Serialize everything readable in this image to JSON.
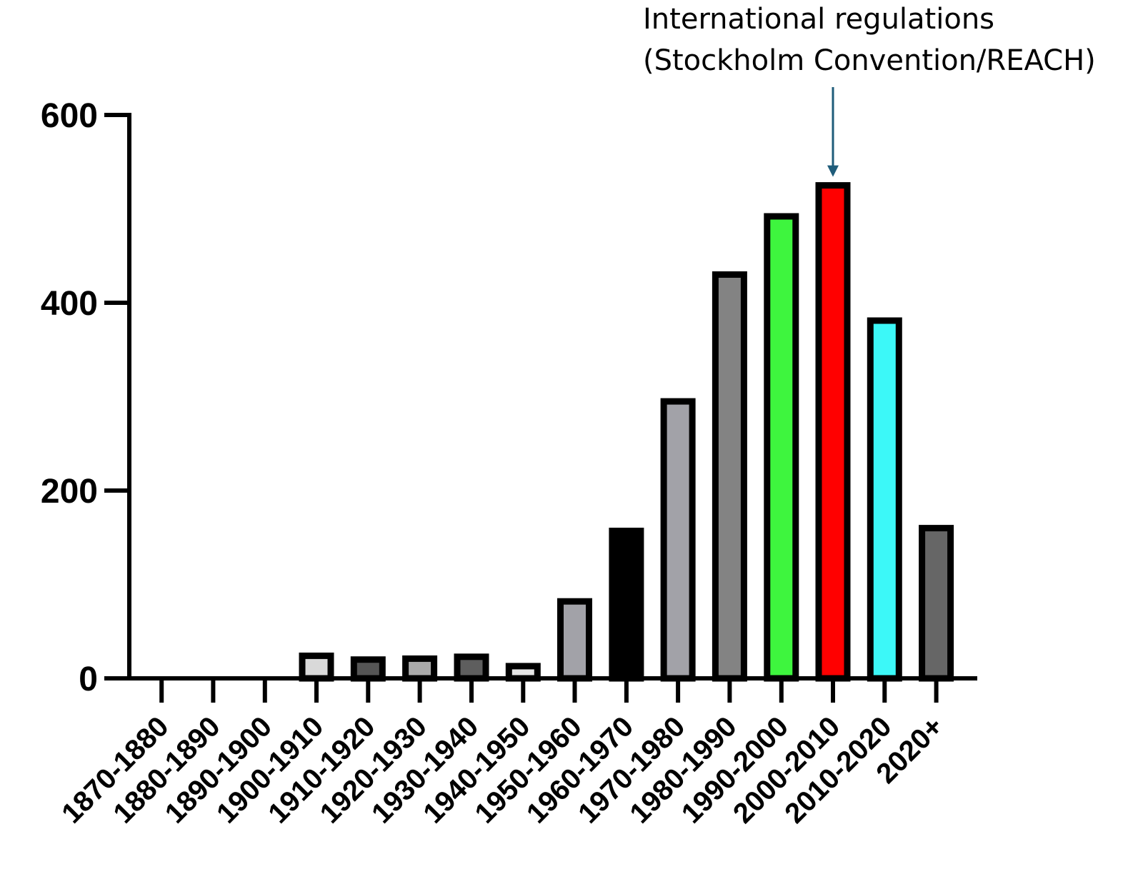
{
  "chart_data": {
    "type": "bar",
    "categories": [
      "1870-1880",
      "1880-1890",
      "1890-1900",
      "1900-1910",
      "1910-1920",
      "1920-1930",
      "1930-1940",
      "1940-1950",
      "1950-1960",
      "1960-1970",
      "1970-1980",
      "1980-1990",
      "1990-2000",
      "2000-2010",
      "2010-2020",
      "2020+"
    ],
    "values": [
      0,
      0,
      0,
      24,
      20,
      21,
      23,
      13,
      82,
      157,
      295,
      430,
      492,
      525,
      381,
      160
    ],
    "colors": [
      "#d9d9d9",
      "#d9d9d9",
      "#d9d9d9",
      "#d9d9d9",
      "#555555",
      "#aaaaaa",
      "#5e5e5e",
      "#e6e6e6",
      "#a2a2a8",
      "#000000",
      "#a2a2a8",
      "#838383",
      "#3ef53e",
      "#ff0000",
      "#3cf8f8",
      "#666666"
    ],
    "title": "",
    "xlabel": "",
    "ylabel": "",
    "ylim": [
      0,
      600
    ],
    "yticks": [
      0,
      200,
      400,
      600
    ],
    "grid": false,
    "legend": "none",
    "annotation": {
      "lines": [
        "International regulations",
        "(Stockholm Convention/REACH)"
      ],
      "target_category": "2000-2010",
      "arrow_color": "#1f5c7a"
    }
  }
}
